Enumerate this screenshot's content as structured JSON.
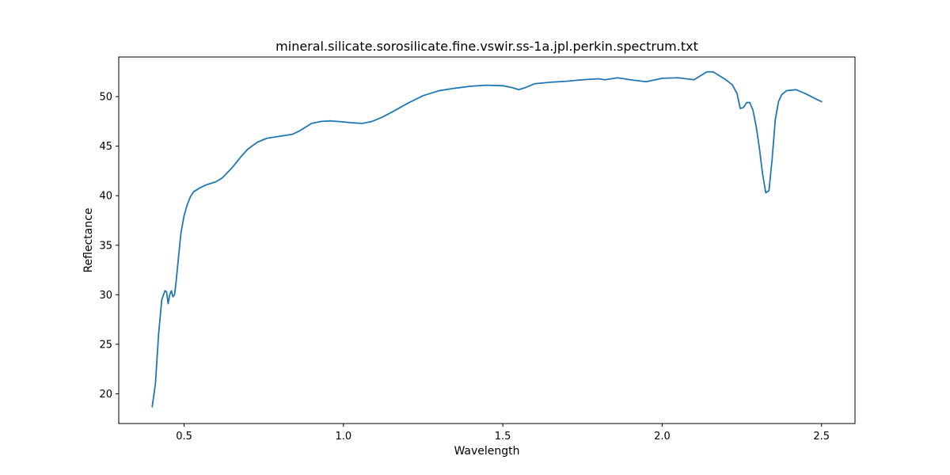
{
  "chart_data": {
    "type": "line",
    "title": "mineral.silicate.sorosilicate.fine.vswir.ss-1a.jpl.perkin.spectrum.txt",
    "xlabel": "Wavelength",
    "ylabel": "Reflectance",
    "xlim": [
      0.295,
      2.605
    ],
    "ylim": [
      17.0,
      54.0
    ],
    "xticks": [
      0.5,
      1.0,
      1.5,
      2.0,
      2.5
    ],
    "xtick_labels": [
      "0.5",
      "1.0",
      "1.5",
      "2.0",
      "2.5"
    ],
    "yticks": [
      20,
      25,
      30,
      35,
      40,
      45,
      50
    ],
    "ytick_labels": [
      "20",
      "25",
      "30",
      "35",
      "40",
      "45",
      "50"
    ],
    "grid": false,
    "line_color": "#1f77b4",
    "series": [
      {
        "x": [
          0.4,
          0.41,
          0.42,
          0.43,
          0.44,
          0.445,
          0.45,
          0.455,
          0.46,
          0.465,
          0.47,
          0.475,
          0.48,
          0.49,
          0.5,
          0.51,
          0.52,
          0.53,
          0.54,
          0.55,
          0.57,
          0.6,
          0.62,
          0.65,
          0.68,
          0.7,
          0.73,
          0.76,
          0.8,
          0.84,
          0.86,
          0.88,
          0.9,
          0.93,
          0.96,
          1.0,
          1.03,
          1.06,
          1.09,
          1.12,
          1.15,
          1.2,
          1.25,
          1.3,
          1.35,
          1.4,
          1.45,
          1.5,
          1.53,
          1.55,
          1.57,
          1.6,
          1.65,
          1.7,
          1.75,
          1.8,
          1.82,
          1.86,
          1.9,
          1.95,
          2.0,
          2.05,
          2.1,
          2.12,
          2.14,
          2.16,
          2.18,
          2.2,
          2.22,
          2.235,
          2.245,
          2.255,
          2.265,
          2.275,
          2.285,
          2.295,
          2.305,
          2.315,
          2.325,
          2.335,
          2.345,
          2.355,
          2.365,
          2.375,
          2.39,
          2.42,
          2.45,
          2.48,
          2.5
        ],
        "y": [
          18.7,
          21.0,
          26.0,
          29.5,
          30.4,
          30.3,
          29.1,
          30.0,
          30.4,
          29.8,
          30.0,
          31.3,
          33.0,
          36.2,
          38.0,
          39.1,
          39.9,
          40.4,
          40.6,
          40.8,
          41.1,
          41.4,
          41.8,
          42.8,
          44.0,
          44.7,
          45.4,
          45.8,
          46.0,
          46.2,
          46.5,
          46.9,
          47.3,
          47.5,
          47.55,
          47.45,
          47.35,
          47.3,
          47.5,
          47.9,
          48.4,
          49.3,
          50.1,
          50.6,
          50.85,
          51.05,
          51.15,
          51.1,
          50.9,
          50.7,
          50.9,
          51.3,
          51.45,
          51.55,
          51.7,
          51.8,
          51.7,
          51.9,
          51.7,
          51.5,
          51.85,
          51.9,
          51.7,
          52.1,
          52.5,
          52.5,
          52.1,
          51.7,
          51.2,
          50.3,
          48.8,
          48.9,
          49.4,
          49.4,
          48.6,
          47.0,
          44.8,
          42.2,
          40.3,
          40.5,
          43.7,
          47.7,
          49.5,
          50.2,
          50.6,
          50.7,
          50.3,
          49.8,
          49.5
        ]
      }
    ]
  }
}
